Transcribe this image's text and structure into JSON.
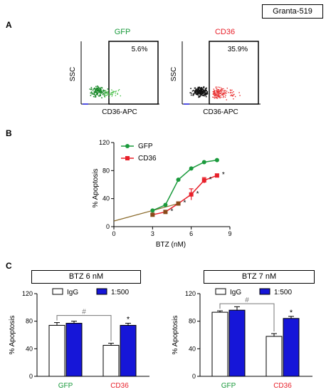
{
  "cell_line": "Granta-519",
  "panel_a": {
    "letter": "A",
    "plots": [
      {
        "title": "GFP",
        "title_color": "#1a9a3c",
        "percent": "5.6%",
        "ylabel": "SSC",
        "xlabel": "CD36-APC",
        "dot_color": "#1a8a2a",
        "dot_color2": "#4cc04c"
      },
      {
        "title": "CD36",
        "title_color": "#e8202a",
        "percent": "35.9%",
        "ylabel": "SSC",
        "xlabel": "CD36-APC",
        "dot_color": "#111111",
        "dot_color2": "#e83030"
      }
    ]
  },
  "panel_b": {
    "letter": "B",
    "marker": "*",
    "chart_data": {
      "type": "line",
      "xlabel": "BTZ (nM)",
      "ylabel": "% Apoptosis",
      "xlim": [
        0,
        9
      ],
      "ylim": [
        0,
        120
      ],
      "xticks": [
        "0",
        "3",
        "6",
        "9"
      ],
      "yticks": [
        "0",
        "40",
        "80",
        "120"
      ],
      "legend_position": "top-left",
      "series": [
        {
          "name": "GFP",
          "color": "#1a9a3c",
          "marker": "circle",
          "x": [
            3,
            4,
            5,
            6,
            7,
            8
          ],
          "y": [
            23,
            31,
            67,
            83,
            92,
            95
          ]
        },
        {
          "name": "CD36",
          "color": "#e8202a",
          "marker": "square",
          "x": [
            3,
            4,
            5,
            6,
            7,
            8
          ],
          "y": [
            17,
            21,
            33,
            46,
            66,
            73
          ],
          "err": [
            1,
            2,
            2,
            8,
            4,
            2
          ]
        }
      ],
      "baseline": {
        "color": "#8a6a2a",
        "x": [
          0,
          5
        ],
        "y": [
          8,
          33
        ]
      },
      "significance": [
        4,
        5,
        6,
        7,
        8
      ]
    }
  },
  "panel_c": {
    "letter": "C",
    "chart_data": [
      {
        "type": "bar",
        "title": "BTZ 6 nM",
        "ylabel": "% Apoptosis",
        "ylim": [
          0,
          120
        ],
        "yticks": [
          "0",
          "40",
          "80",
          "120"
        ],
        "categories": [
          "GFP",
          "CD36"
        ],
        "category_colors": [
          "#1a9a3c",
          "#e8202a"
        ],
        "legend_position": "top",
        "series": [
          {
            "name": "IgG",
            "color": "#ffffff",
            "values": [
              74,
              45
            ],
            "err": [
              4,
              3
            ]
          },
          {
            "name": "1:500",
            "color": "#1616d8",
            "values": [
              77,
              74
            ],
            "err": [
              3,
              3
            ]
          }
        ],
        "bracket_label": "#",
        "star_label": "*"
      },
      {
        "type": "bar",
        "title": "BTZ 7 nM",
        "ylabel": "% Apoptosis",
        "ylim": [
          0,
          120
        ],
        "yticks": [
          "0",
          "40",
          "80",
          "120"
        ],
        "categories": [
          "GFP",
          "CD36"
        ],
        "category_colors": [
          "#1a9a3c",
          "#e8202a"
        ],
        "legend_position": "top",
        "series": [
          {
            "name": "IgG",
            "color": "#ffffff",
            "values": [
              93,
              58
            ],
            "err": [
              2,
              4
            ]
          },
          {
            "name": "1:500",
            "color": "#1616d8",
            "values": [
              96,
              84
            ],
            "err": [
              5,
              3
            ]
          }
        ],
        "bracket_label": "#",
        "star_label": "*"
      }
    ]
  }
}
